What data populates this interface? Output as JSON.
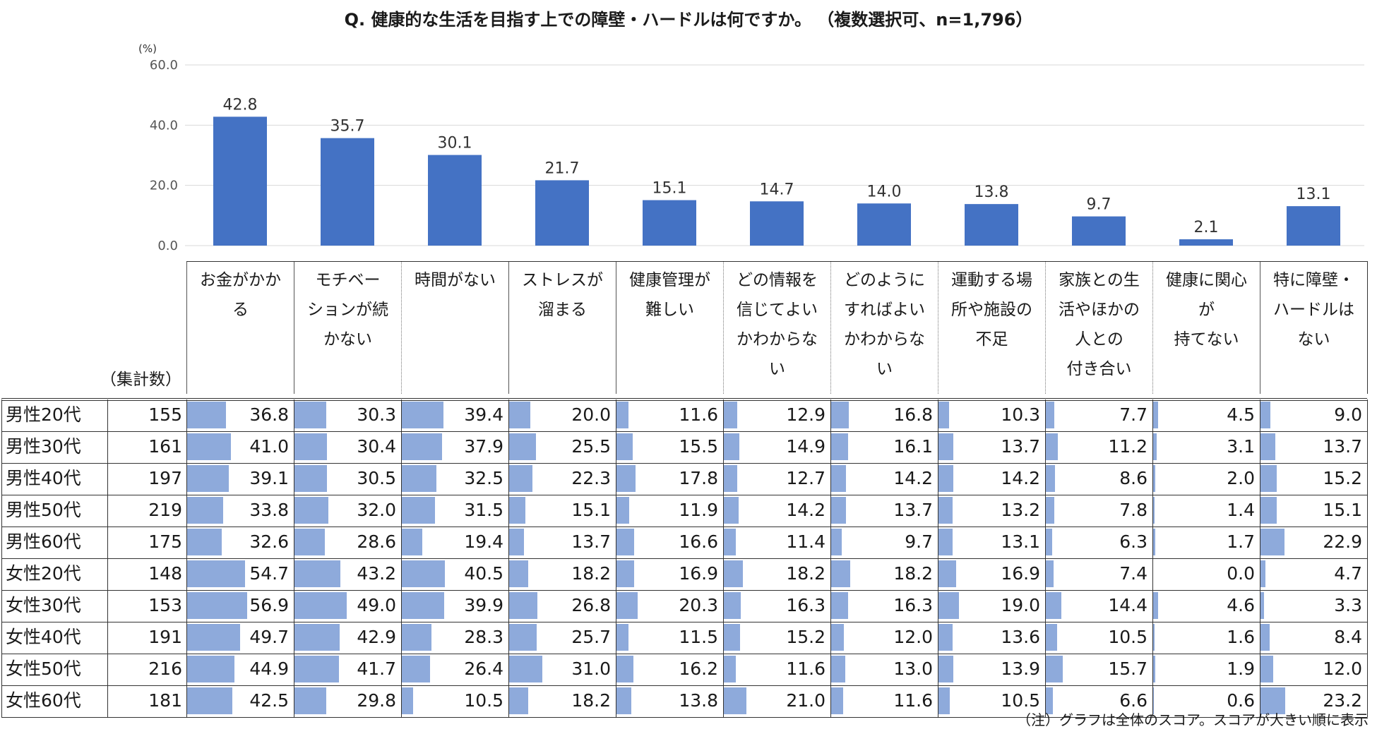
{
  "title": "Q. 健康的な生活を目指す上での障壁・ハードルは何ですか。 （複数選択可、n=1,796）",
  "count_header": "（集計数）",
  "note": "（注）グラフは全体のスコア。スコアが大きい順に表示",
  "colors": {
    "chart_bar": "#4472c4",
    "table_bar": "#8eaadb"
  },
  "chart_data": {
    "type": "bar",
    "y_unit": "(%)",
    "ylim": [
      0,
      60
    ],
    "yticks": [
      "0.0",
      "20.0",
      "40.0",
      "60.0"
    ],
    "grid": true,
    "categories": [
      "お金がかか\nる",
      "モチベー\nションが続\nかない",
      "時間がない",
      "ストレスが\n溜まる",
      "健康管理が\n難しい",
      "どの情報を\n信じてよい\nかわからな\nい",
      "どのように\nすればよい\nかわからな\nい",
      "運動する場\n所や施設の\n不足",
      "家族との生\n活やほかの\n人との\n付き合い",
      "健康に関心\nが\n持てない",
      "特に障壁・\nハードルは\nない"
    ],
    "values": [
      42.8,
      35.7,
      30.1,
      21.7,
      15.1,
      14.7,
      14.0,
      13.8,
      9.7,
      2.1,
      13.1
    ],
    "value_labels": [
      "42.8",
      "35.7",
      "30.1",
      "21.7",
      "15.1",
      "14.7",
      "14.0",
      "13.8",
      "9.7",
      "2.1",
      "13.1"
    ]
  },
  "table": {
    "rows": [
      {
        "label": "男性20代",
        "count": "155",
        "values": [
          "36.8",
          "30.3",
          "39.4",
          "20.0",
          "11.6",
          "12.9",
          "16.8",
          "10.3",
          "7.7",
          "4.5",
          "9.0"
        ]
      },
      {
        "label": "男性30代",
        "count": "161",
        "values": [
          "41.0",
          "30.4",
          "37.9",
          "25.5",
          "15.5",
          "14.9",
          "16.1",
          "13.7",
          "11.2",
          "3.1",
          "13.7"
        ]
      },
      {
        "label": "男性40代",
        "count": "197",
        "values": [
          "39.1",
          "30.5",
          "32.5",
          "22.3",
          "17.8",
          "12.7",
          "14.2",
          "14.2",
          "8.6",
          "2.0",
          "15.2"
        ]
      },
      {
        "label": "男性50代",
        "count": "219",
        "values": [
          "33.8",
          "32.0",
          "31.5",
          "15.1",
          "11.9",
          "14.2",
          "13.7",
          "13.2",
          "7.8",
          "1.4",
          "15.1"
        ]
      },
      {
        "label": "男性60代",
        "count": "175",
        "values": [
          "32.6",
          "28.6",
          "19.4",
          "13.7",
          "16.6",
          "11.4",
          "9.7",
          "13.1",
          "6.3",
          "1.7",
          "22.9"
        ]
      },
      {
        "label": "女性20代",
        "count": "148",
        "values": [
          "54.7",
          "43.2",
          "40.5",
          "18.2",
          "16.9",
          "18.2",
          "18.2",
          "16.9",
          "7.4",
          "0.0",
          "4.7"
        ]
      },
      {
        "label": "女性30代",
        "count": "153",
        "values": [
          "56.9",
          "49.0",
          "39.9",
          "26.8",
          "20.3",
          "16.3",
          "16.3",
          "19.0",
          "14.4",
          "4.6",
          "3.3"
        ]
      },
      {
        "label": "女性40代",
        "count": "191",
        "values": [
          "49.7",
          "42.9",
          "28.3",
          "25.7",
          "11.5",
          "15.2",
          "12.0",
          "13.6",
          "10.5",
          "1.6",
          "8.4"
        ]
      },
      {
        "label": "女性50代",
        "count": "216",
        "values": [
          "44.9",
          "41.7",
          "26.4",
          "31.0",
          "16.2",
          "11.6",
          "13.0",
          "13.9",
          "15.7",
          "1.9",
          "12.0"
        ]
      },
      {
        "label": "女性60代",
        "count": "181",
        "values": [
          "42.5",
          "29.8",
          "10.5",
          "18.2",
          "13.8",
          "21.0",
          "11.6",
          "10.5",
          "6.6",
          "0.6",
          "23.2"
        ]
      }
    ]
  }
}
